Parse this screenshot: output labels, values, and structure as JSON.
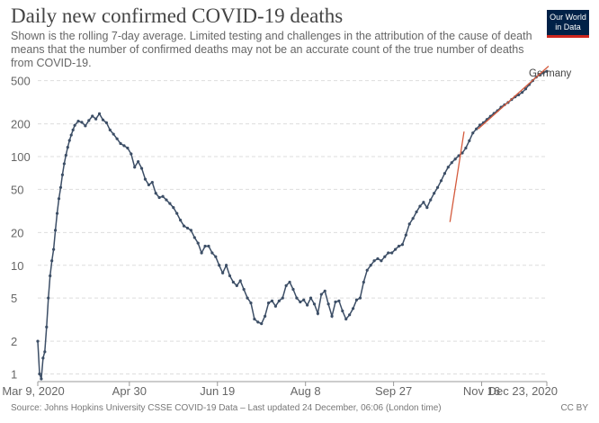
{
  "header": {
    "title": "Daily new confirmed COVID-19 deaths",
    "subtitle": "Shown is the rolling 7-day average. Limited testing and challenges in the attribution of the cause of death means that the number of confirmed deaths may not be an accurate count of the true number of deaths from COVID-19."
  },
  "logo": {
    "line1": "Our World",
    "line2": "in Data",
    "bg_color": "#002147",
    "accent_color": "#ce261e"
  },
  "footer": {
    "source": "Source: Johns Hopkins University CSSE COVID-19 Data – Last updated 24 December, 06:06 (London time)",
    "license": "CC BY"
  },
  "chart_data": {
    "type": "line",
    "title": "Daily new confirmed COVID-19 deaths",
    "y_scale": "log",
    "ylim": [
      0.85,
      700
    ],
    "xlim": [
      "2020-03-09",
      "2020-12-23"
    ],
    "y_ticks": [
      {
        "value": 1,
        "label": "1"
      },
      {
        "value": 2,
        "label": "2"
      },
      {
        "value": 5,
        "label": "5"
      },
      {
        "value": 10,
        "label": "10"
      },
      {
        "value": 20,
        "label": "20"
      },
      {
        "value": 50,
        "label": "50"
      },
      {
        "value": 100,
        "label": "100"
      },
      {
        "value": 200,
        "label": "200"
      },
      {
        "value": 500,
        "label": "500"
      }
    ],
    "x_ticks": [
      {
        "date": "2020-03-09",
        "label": "Mar 9, 2020"
      },
      {
        "date": "2020-04-30",
        "label": "Apr 30"
      },
      {
        "date": "2020-06-19",
        "label": "Jun 19"
      },
      {
        "date": "2020-08-08",
        "label": "Aug 8"
      },
      {
        "date": "2020-09-27",
        "label": "Sep 27"
      },
      {
        "date": "2020-11-16",
        "label": "Nov 16"
      },
      {
        "date": "2020-12-23",
        "label": "Dec 23, 2020"
      }
    ],
    "grid": "horizontal-dashed",
    "series": [
      {
        "name": "Germany",
        "color": "#3c4e66",
        "points": [
          [
            "2020-03-09",
            2.0
          ],
          [
            "2020-03-10",
            1.0
          ],
          [
            "2020-03-11",
            0.9
          ],
          [
            "2020-03-12",
            1.4
          ],
          [
            "2020-03-13",
            1.6
          ],
          [
            "2020-03-14",
            2.7
          ],
          [
            "2020-03-15",
            5.0
          ],
          [
            "2020-03-16",
            8.0
          ],
          [
            "2020-03-17",
            11.0
          ],
          [
            "2020-03-18",
            14.0
          ],
          [
            "2020-03-19",
            21.0
          ],
          [
            "2020-03-20",
            30.0
          ],
          [
            "2020-03-21",
            41.0
          ],
          [
            "2020-03-22",
            52.0
          ],
          [
            "2020-03-23",
            68.0
          ],
          [
            "2020-03-24",
            86.0
          ],
          [
            "2020-03-25",
            103.0
          ],
          [
            "2020-03-26",
            122.0
          ],
          [
            "2020-03-27",
            141.0
          ],
          [
            "2020-03-28",
            158.0
          ],
          [
            "2020-03-29",
            176.0
          ],
          [
            "2020-03-30",
            194.0
          ],
          [
            "2020-04-01",
            212.0
          ],
          [
            "2020-04-03",
            207.0
          ],
          [
            "2020-04-05",
            192.0
          ],
          [
            "2020-04-07",
            215.0
          ],
          [
            "2020-04-09",
            236.0
          ],
          [
            "2020-04-11",
            222.0
          ],
          [
            "2020-04-13",
            248.0
          ],
          [
            "2020-04-15",
            218.0
          ],
          [
            "2020-04-17",
            205.0
          ],
          [
            "2020-04-19",
            176.0
          ],
          [
            "2020-04-21",
            161.0
          ],
          [
            "2020-04-23",
            146.0
          ],
          [
            "2020-04-25",
            132.0
          ],
          [
            "2020-04-27",
            126.0
          ],
          [
            "2020-04-29",
            120.0
          ],
          [
            "2020-05-01",
            106.0
          ],
          [
            "2020-05-03",
            80.0
          ],
          [
            "2020-05-05",
            90.0
          ],
          [
            "2020-05-07",
            78.0
          ],
          [
            "2020-05-09",
            62.0
          ],
          [
            "2020-05-11",
            55.0
          ],
          [
            "2020-05-13",
            58.0
          ],
          [
            "2020-05-15",
            46.0
          ],
          [
            "2020-05-17",
            42.0
          ],
          [
            "2020-05-19",
            43.0
          ],
          [
            "2020-05-21",
            40.0
          ],
          [
            "2020-05-23",
            37.0
          ],
          [
            "2020-05-25",
            34.0
          ],
          [
            "2020-05-27",
            30.0
          ],
          [
            "2020-05-29",
            26.0
          ],
          [
            "2020-05-31",
            23.0
          ],
          [
            "2020-06-02",
            22.0
          ],
          [
            "2020-06-04",
            21.0
          ],
          [
            "2020-06-06",
            18.0
          ],
          [
            "2020-06-08",
            16.0
          ],
          [
            "2020-06-10",
            13.0
          ],
          [
            "2020-06-12",
            15.0
          ],
          [
            "2020-06-14",
            15.0
          ],
          [
            "2020-06-16",
            13.0
          ],
          [
            "2020-06-18",
            12.0
          ],
          [
            "2020-06-20",
            10.0
          ],
          [
            "2020-06-22",
            8.5
          ],
          [
            "2020-06-24",
            10.0
          ],
          [
            "2020-06-26",
            8.0
          ],
          [
            "2020-06-28",
            7.0
          ],
          [
            "2020-06-30",
            6.5
          ],
          [
            "2020-07-02",
            7.2
          ],
          [
            "2020-07-04",
            6.0
          ],
          [
            "2020-07-06",
            5.0
          ],
          [
            "2020-07-08",
            4.5
          ],
          [
            "2020-07-10",
            3.2
          ],
          [
            "2020-07-12",
            3.0
          ],
          [
            "2020-07-14",
            2.9
          ],
          [
            "2020-07-16",
            3.4
          ],
          [
            "2020-07-18",
            4.5
          ],
          [
            "2020-07-20",
            4.7
          ],
          [
            "2020-07-22",
            4.2
          ],
          [
            "2020-07-24",
            4.7
          ],
          [
            "2020-07-26",
            5.0
          ],
          [
            "2020-07-28",
            6.5
          ],
          [
            "2020-07-30",
            7.0
          ],
          [
            "2020-08-01",
            6.0
          ],
          [
            "2020-08-03",
            5.0
          ],
          [
            "2020-08-05",
            4.6
          ],
          [
            "2020-08-07",
            4.8
          ],
          [
            "2020-08-09",
            4.3
          ],
          [
            "2020-08-11",
            5.0
          ],
          [
            "2020-08-13",
            4.4
          ],
          [
            "2020-08-15",
            3.6
          ],
          [
            "2020-08-17",
            5.4
          ],
          [
            "2020-08-19",
            5.8
          ],
          [
            "2020-08-21",
            4.4
          ],
          [
            "2020-08-23",
            3.4
          ],
          [
            "2020-08-25",
            4.6
          ],
          [
            "2020-08-27",
            4.7
          ],
          [
            "2020-08-29",
            3.8
          ],
          [
            "2020-08-31",
            3.2
          ],
          [
            "2020-09-02",
            3.5
          ],
          [
            "2020-09-04",
            4.0
          ],
          [
            "2020-09-06",
            4.8
          ],
          [
            "2020-09-08",
            5.0
          ],
          [
            "2020-09-10",
            7.0
          ],
          [
            "2020-09-12",
            9.0
          ],
          [
            "2020-09-14",
            10.0
          ],
          [
            "2020-09-16",
            11.0
          ],
          [
            "2020-09-18",
            11.5
          ],
          [
            "2020-09-20",
            11.0
          ],
          [
            "2020-09-22",
            12.0
          ],
          [
            "2020-09-24",
            13.0
          ],
          [
            "2020-09-26",
            13.0
          ],
          [
            "2020-09-28",
            14.0
          ],
          [
            "2020-09-30",
            15.0
          ],
          [
            "2020-10-02",
            15.5
          ],
          [
            "2020-10-04",
            19.0
          ],
          [
            "2020-10-06",
            24.0
          ],
          [
            "2020-10-08",
            27.0
          ],
          [
            "2020-10-10",
            31.0
          ],
          [
            "2020-10-12",
            35.0
          ],
          [
            "2020-10-14",
            38.0
          ],
          [
            "2020-10-16",
            34.0
          ],
          [
            "2020-10-18",
            40.0
          ],
          [
            "2020-10-20",
            46.0
          ],
          [
            "2020-10-22",
            52.0
          ],
          [
            "2020-10-24",
            60.0
          ],
          [
            "2020-10-26",
            70.0
          ],
          [
            "2020-10-28",
            80.0
          ],
          [
            "2020-10-30",
            88.0
          ],
          [
            "2020-11-01",
            95.0
          ],
          [
            "2020-11-03",
            102.0
          ],
          [
            "2020-11-05",
            108.0
          ],
          [
            "2020-11-07",
            120.0
          ],
          [
            "2020-11-09",
            140.0
          ],
          [
            "2020-11-11",
            165.0
          ],
          [
            "2020-11-13",
            180.0
          ],
          [
            "2020-11-15",
            195.0
          ],
          [
            "2020-11-17",
            205.0
          ],
          [
            "2020-11-19",
            220.0
          ],
          [
            "2020-11-21",
            235.0
          ],
          [
            "2020-11-23",
            250.0
          ],
          [
            "2020-11-25",
            265.0
          ],
          [
            "2020-11-27",
            285.0
          ],
          [
            "2020-11-29",
            300.0
          ],
          [
            "2020-12-01",
            315.0
          ],
          [
            "2020-12-03",
            335.0
          ],
          [
            "2020-12-05",
            355.0
          ],
          [
            "2020-12-07",
            370.0
          ],
          [
            "2020-12-09",
            390.0
          ],
          [
            "2020-12-11",
            420.0
          ],
          [
            "2020-12-13",
            460.0
          ],
          [
            "2020-12-15",
            500.0
          ],
          [
            "2020-12-17",
            540.0
          ],
          [
            "2020-12-19",
            570.0
          ],
          [
            "2020-12-21",
            590.0
          ],
          [
            "2020-12-23",
            610.0
          ]
        ]
      }
    ],
    "trend_lines": [
      {
        "color": "#d45a3c",
        "points": [
          [
            "2020-10-29",
            25.0
          ],
          [
            "2020-11-06",
            170.0
          ]
        ]
      },
      {
        "color": "#d45a3c",
        "points": [
          [
            "2020-11-14",
            180.0
          ],
          [
            "2020-12-24",
            680.0
          ]
        ]
      }
    ]
  }
}
